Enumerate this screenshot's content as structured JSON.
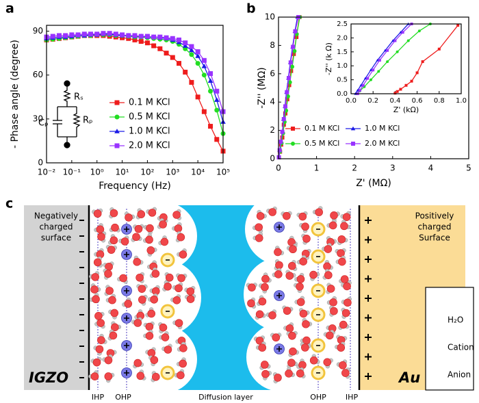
{
  "chart_data": [
    {
      "type": "line",
      "panel": "a",
      "x_label": "Frequency (Hz)",
      "y_label": "- Phase angle (degree)",
      "xscale": "log",
      "xlim": [
        0.01,
        100000
      ],
      "ylim": [
        0,
        94
      ],
      "xticks": [
        {
          "value": 0.01,
          "label": "10⁻²"
        },
        {
          "value": 0.1,
          "label": "10⁻¹"
        },
        {
          "value": 1,
          "label": "10⁰"
        },
        {
          "value": 10,
          "label": "10¹"
        },
        {
          "value": 100,
          "label": "10²"
        },
        {
          "value": 1000,
          "label": "10³"
        },
        {
          "value": 10000,
          "label": "10⁴"
        },
        {
          "value": 100000,
          "label": "10⁵"
        }
      ],
      "yticks": [
        0,
        30,
        60,
        90
      ],
      "legend": "center right",
      "circuit_labels": [
        "Rₛ",
        "Cₚ",
        "Rₚ"
      ],
      "x": [
        0.01,
        0.0178,
        0.0316,
        0.0562,
        0.1,
        0.178,
        0.316,
        0.562,
        1,
        1.78,
        3.16,
        5.62,
        10,
        17.8,
        31.6,
        56.2,
        100,
        178,
        316,
        562,
        1000,
        1780,
        3160,
        5620,
        10000,
        17800,
        31600,
        56200,
        100000
      ],
      "series": [
        {
          "name": "0.1 M KCl",
          "color": "#ee1c1c",
          "marker": "square",
          "values": [
            84,
            84.5,
            85,
            85.5,
            86,
            86.5,
            87,
            87,
            87,
            87,
            86.5,
            86,
            85.5,
            85,
            84,
            83,
            82,
            80,
            78,
            75,
            72,
            68,
            62,
            55,
            45,
            35,
            25,
            16,
            8
          ]
        },
        {
          "name": "0.5 M KCl",
          "color": "#22dd22",
          "marker": "circle",
          "values": [
            84,
            84.5,
            85,
            85.5,
            86,
            86.5,
            87,
            87,
            87.5,
            87.5,
            87.5,
            87,
            87,
            86.5,
            86,
            86,
            85.5,
            85,
            84.5,
            84,
            83,
            81,
            78,
            74,
            68,
            60,
            49,
            36,
            20
          ]
        },
        {
          "name": "1.0 M KCl",
          "color": "#1a1ae6",
          "marker": "triangle",
          "values": [
            85,
            85.5,
            86,
            86,
            86.5,
            87,
            87,
            87.5,
            87.5,
            88,
            88,
            87.5,
            87,
            87,
            86.5,
            86.5,
            86,
            86,
            85.5,
            85,
            84,
            82.5,
            80,
            77,
            73,
            66,
            56,
            43,
            28
          ]
        },
        {
          "name": "2.0 M KCl",
          "color": "#9933ff",
          "marker": "square",
          "values": [
            86,
            86.5,
            87,
            87,
            87.5,
            87.5,
            88,
            88,
            88,
            88.5,
            88.5,
            88,
            87.5,
            87,
            87,
            86.5,
            86.5,
            86,
            86,
            85.5,
            85,
            84,
            82,
            79.5,
            76,
            70,
            61,
            49,
            35
          ]
        }
      ]
    },
    {
      "type": "line",
      "panel": "b",
      "x_label": "Z' (MΩ)",
      "y_label": "-Z'' (MΩ)",
      "xlim": [
        0,
        5
      ],
      "ylim": [
        0,
        10
      ],
      "xticks": [
        0,
        1,
        2,
        3,
        4,
        5
      ],
      "yticks": [
        0,
        2,
        4,
        6,
        8,
        10
      ],
      "legend": "lower right",
      "series": [
        {
          "name": "0.1 M KCl",
          "color": "#ee1c1c",
          "marker": "square",
          "x": [
            0.01,
            0.04,
            0.07,
            0.1,
            0.14,
            0.18,
            0.23,
            0.28,
            0.33,
            0.4,
            0.47,
            0.55
          ],
          "values": [
            0.1,
            0.5,
            1,
            1.5,
            2.4,
            3.2,
            4.2,
            5.2,
            6.2,
            7.4,
            8.6,
            10
          ]
        },
        {
          "name": "0.5 M KCl",
          "color": "#22dd22",
          "marker": "circle",
          "x": [
            0.01,
            0.04,
            0.08,
            0.12,
            0.16,
            0.2,
            0.25,
            0.3,
            0.36,
            0.42,
            0.48,
            0.56
          ],
          "values": [
            0.1,
            0.5,
            1.1,
            1.8,
            2.6,
            3.4,
            4.4,
            5.4,
            6.5,
            7.6,
            8.8,
            10
          ]
        },
        {
          "name": "1.0 M KCl",
          "color": "#1a1ae6",
          "marker": "triangle",
          "x": [
            0.01,
            0.03,
            0.06,
            0.1,
            0.13,
            0.17,
            0.21,
            0.26,
            0.31,
            0.37,
            0.43,
            0.5
          ],
          "values": [
            0.1,
            0.6,
            1.2,
            1.9,
            2.8,
            3.7,
            4.7,
            5.7,
            6.8,
            7.9,
            9,
            10
          ]
        },
        {
          "name": "2.0 M KCl",
          "color": "#9933ff",
          "marker": "square",
          "x": [
            0.01,
            0.03,
            0.06,
            0.1,
            0.14,
            0.18,
            0.22,
            0.27,
            0.32,
            0.38,
            0.44,
            0.52
          ],
          "values": [
            0.1,
            0.6,
            1.2,
            1.9,
            2.8,
            3.7,
            4.7,
            5.7,
            6.8,
            7.9,
            9,
            10
          ]
        }
      ]
    },
    {
      "type": "line",
      "x_label": "Z' (kΩ)",
      "y_label": "-Z'' (k Ω)",
      "xlim": [
        0,
        1
      ],
      "ylim": [
        0,
        2.5
      ],
      "xticks": [
        {
          "value": 0,
          "label": "0.0"
        },
        0.2,
        0.4,
        0.6,
        0.8,
        {
          "value": 1,
          "label": "1.0"
        }
      ],
      "yticks": [
        {
          "value": 0,
          "label": "0.0"
        },
        0.5,
        {
          "value": 1,
          "label": "1.0"
        },
        1.5,
        {
          "value": 2,
          "label": "2.0"
        },
        2.5
      ],
      "series": [
        {
          "color": "#ee1c1c",
          "marker": "square",
          "x": [
            0.4,
            0.42,
            0.45,
            0.5,
            0.55,
            0.6,
            0.65,
            0.8,
            0.97
          ],
          "values": [
            0.02,
            0.08,
            0.16,
            0.3,
            0.45,
            0.75,
            1.15,
            1.6,
            2.45
          ]
        },
        {
          "color": "#22dd22",
          "marker": "circle",
          "x": [
            0.05,
            0.08,
            0.12,
            0.18,
            0.25,
            0.33,
            0.42,
            0.52,
            0.62,
            0.72
          ],
          "values": [
            0,
            0.1,
            0.25,
            0.5,
            0.8,
            1.15,
            1.5,
            1.9,
            2.25,
            2.5
          ]
        },
        {
          "color": "#1a1ae6",
          "marker": "triangle",
          "x": [
            0.04,
            0.06,
            0.09,
            0.13,
            0.18,
            0.24,
            0.31,
            0.38,
            0.45,
            0.52
          ],
          "values": [
            0,
            0.12,
            0.3,
            0.55,
            0.85,
            1.2,
            1.55,
            1.9,
            2.2,
            2.5
          ]
        },
        {
          "color": "#9933ff",
          "marker": "square",
          "x": [
            0.06,
            0.08,
            0.11,
            0.15,
            0.2,
            0.26,
            0.33,
            0.4,
            0.47,
            0.55
          ],
          "values": [
            0,
            0.12,
            0.3,
            0.55,
            0.85,
            1.2,
            1.55,
            1.9,
            2.2,
            2.5
          ]
        }
      ]
    }
  ],
  "diagram": {
    "label": "c",
    "left_surface": [
      "Negatively",
      "charged",
      "surface"
    ],
    "right_surface": [
      "Positively",
      "charged",
      "Surface"
    ],
    "left_electrode": "IGZO",
    "right_electrode": "Au",
    "layer_labels": [
      "IHP",
      "OHP",
      "Diffusion layer",
      "OHP",
      "IHP"
    ],
    "legend": [
      "H₂O",
      "Cation",
      "Anion"
    ]
  }
}
